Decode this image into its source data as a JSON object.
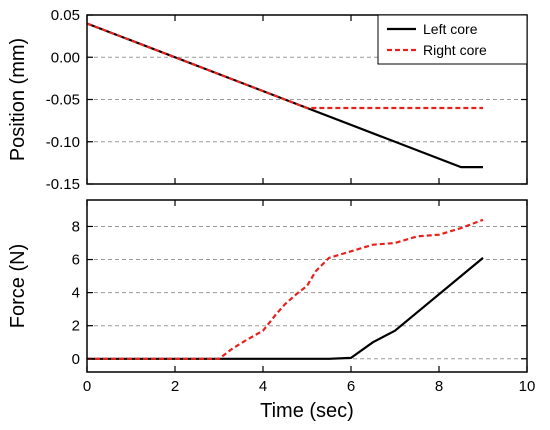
{
  "chart_data": [
    {
      "type": "line",
      "ylabel": "Position (mm)",
      "ylim": [
        -0.15,
        0.05
      ],
      "yticks": [
        -0.15,
        -0.1,
        -0.05,
        0.0,
        0.05
      ],
      "ytick_labels": [
        "-0.15",
        "-0.10",
        "-0.05",
        "0.00",
        "0.05"
      ],
      "xlim": [
        0,
        10
      ],
      "grid": "horizontal dashed",
      "legend": "top-right",
      "series": [
        {
          "name": "Left core",
          "color": "#000000",
          "style": "solid",
          "x": [
            0,
            8.5,
            9
          ],
          "y": [
            0.04,
            -0.13,
            -0.13
          ]
        },
        {
          "name": "Right core",
          "color": "#e8211d",
          "style": "dashed",
          "x": [
            0,
            5.0,
            9
          ],
          "y": [
            0.04,
            -0.06,
            -0.06
          ]
        }
      ]
    },
    {
      "type": "line",
      "xlabel": "Time (sec)",
      "ylabel": "Force (N)",
      "xlim": [
        0,
        10
      ],
      "xticks": [
        0,
        2,
        4,
        6,
        8,
        10
      ],
      "xtick_labels": [
        "0",
        "2",
        "4",
        "6",
        "8",
        "10"
      ],
      "ylim": [
        -0.8,
        9.6
      ],
      "yticks": [
        0,
        2,
        4,
        6,
        8
      ],
      "ytick_labels": [
        "0",
        "2",
        "4",
        "6",
        "8"
      ],
      "grid": "horizontal dashed",
      "series": [
        {
          "name": "Left core",
          "color": "#000000",
          "style": "solid",
          "x": [
            0,
            5.5,
            6.0,
            6.5,
            7.0,
            9.0
          ],
          "y": [
            0,
            0,
            0.05,
            1.0,
            1.7,
            6.1
          ]
        },
        {
          "name": "Right core",
          "color": "#e8211d",
          "style": "dashed",
          "x": [
            0,
            3.0,
            3.3,
            3.6,
            4.0,
            4.3,
            4.5,
            4.8,
            5.0,
            5.2,
            5.5,
            6.0,
            6.5,
            7.0,
            7.5,
            8.0,
            8.5,
            9.0
          ],
          "y": [
            0,
            0,
            0.6,
            1.1,
            1.7,
            2.7,
            3.3,
            4.0,
            4.4,
            5.3,
            6.1,
            6.5,
            6.9,
            7.0,
            7.4,
            7.5,
            7.9,
            8.4
          ]
        }
      ]
    }
  ]
}
